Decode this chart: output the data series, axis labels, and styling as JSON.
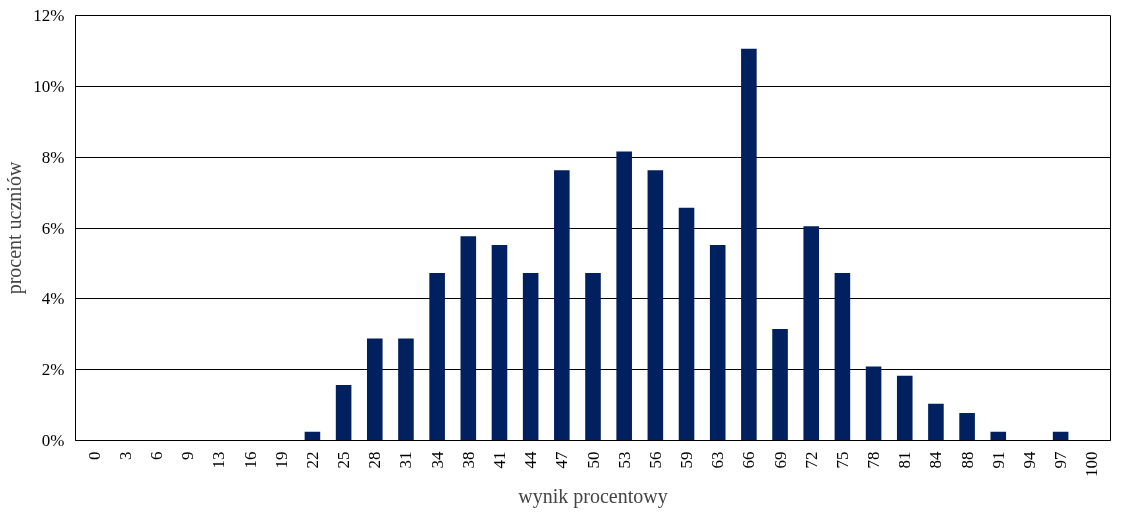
{
  "chart_data": {
    "type": "bar",
    "xlabel": "wynik procentowy",
    "ylabel": "procent uczniów",
    "categories": [
      "0",
      "3",
      "6",
      "9",
      "13",
      "16",
      "19",
      "22",
      "25",
      "28",
      "31",
      "34",
      "38",
      "41",
      "44",
      "47",
      "50",
      "53",
      "56",
      "59",
      "63",
      "66",
      "69",
      "72",
      "75",
      "78",
      "81",
      "84",
      "88",
      "91",
      "94",
      "97",
      "100"
    ],
    "series": [
      {
        "color": "#00205f",
        "values": [
          0,
          0,
          0,
          0,
          0,
          0,
          0,
          0.25,
          1.57,
          2.88,
          2.88,
          4.73,
          5.77,
          5.52,
          4.73,
          7.63,
          4.73,
          8.16,
          7.63,
          6.57,
          5.52,
          11.06,
          3.15,
          6.05,
          4.73,
          2.09,
          1.83,
          1.04,
          0.78,
          0.25,
          0,
          0.25,
          0
        ]
      }
    ],
    "ylim": [
      0,
      12
    ],
    "yticks": [
      {
        "value": 0,
        "label": "0%"
      },
      {
        "value": 2,
        "label": "2%"
      },
      {
        "value": 4,
        "label": "4%"
      },
      {
        "value": 6,
        "label": "6%"
      },
      {
        "value": 8,
        "label": "8%"
      },
      {
        "value": 10,
        "label": "10%"
      },
      {
        "value": 12,
        "label": "12%"
      }
    ],
    "grid": "y"
  }
}
